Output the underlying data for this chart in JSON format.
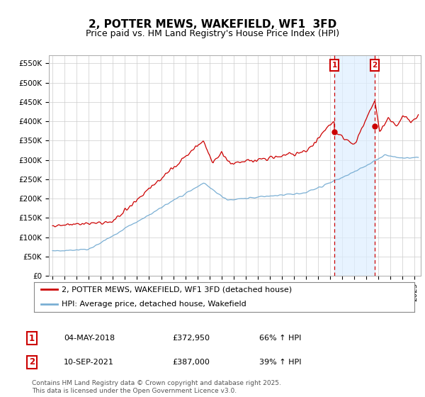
{
  "title": "2, POTTER MEWS, WAKEFIELD, WF1  3FD",
  "subtitle": "Price paid vs. HM Land Registry's House Price Index (HPI)",
  "ylabel_ticks": [
    "£0",
    "£50K",
    "£100K",
    "£150K",
    "£200K",
    "£250K",
    "£300K",
    "£350K",
    "£400K",
    "£450K",
    "£500K",
    "£550K"
  ],
  "ytick_values": [
    0,
    50000,
    100000,
    150000,
    200000,
    250000,
    300000,
    350000,
    400000,
    450000,
    500000,
    550000
  ],
  "ylim": [
    0,
    570000
  ],
  "xmin": 1994.7,
  "xmax": 2025.5,
  "marker1_x": 2018.34,
  "marker1_y": 372950,
  "marker2_x": 2021.69,
  "marker2_y": 387000,
  "marker1_label": "1",
  "marker2_label": "2",
  "vline1_x": 2018.34,
  "vline2_x": 2021.69,
  "legend_line1": "2, POTTER MEWS, WAKEFIELD, WF1 3FD (detached house)",
  "legend_line2": "HPI: Average price, detached house, Wakefield",
  "table_rows": [
    [
      "1",
      "04-MAY-2018",
      "£372,950",
      "66% ↑ HPI"
    ],
    [
      "2",
      "10-SEP-2021",
      "£387,000",
      "39% ↑ HPI"
    ]
  ],
  "footer": "Contains HM Land Registry data © Crown copyright and database right 2025.\nThis data is licensed under the Open Government Licence v3.0.",
  "red_color": "#cc0000",
  "blue_color": "#7aafd4",
  "shade_color": "#ddeeff",
  "vline_color": "#cc0000",
  "background_color": "#ffffff",
  "plot_bg_color": "#ffffff",
  "grid_color": "#cccccc",
  "title_fontsize": 11,
  "subtitle_fontsize": 9,
  "tick_fontsize": 7.5,
  "legend_fontsize": 8,
  "table_fontsize": 8,
  "footer_fontsize": 6.5
}
